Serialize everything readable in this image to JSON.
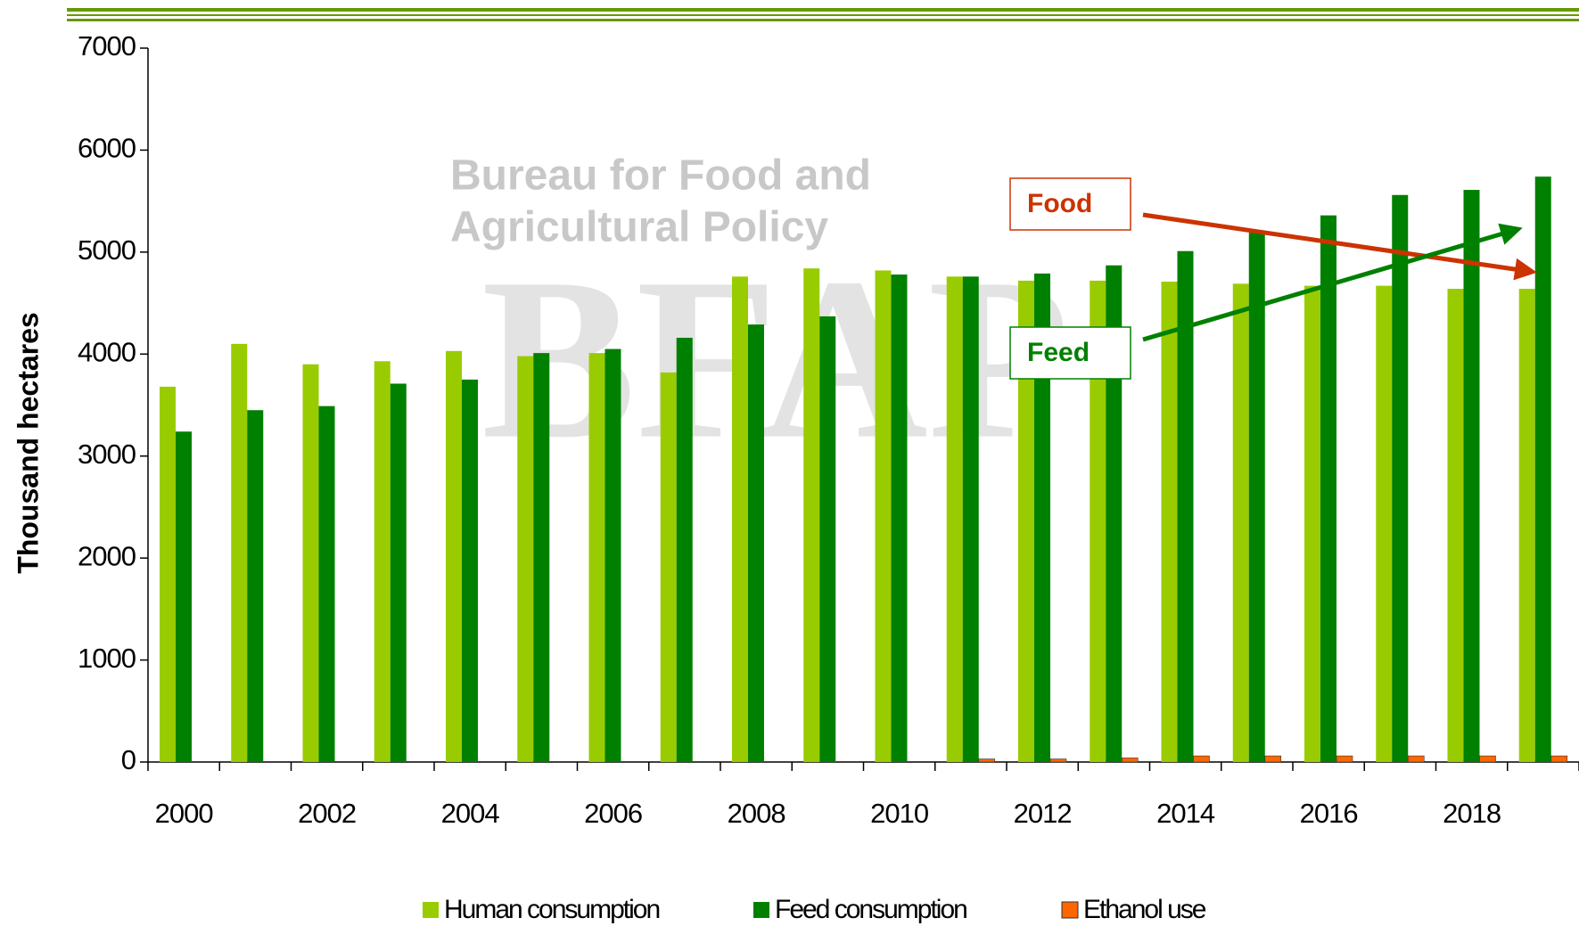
{
  "chart_data": {
    "type": "bar",
    "y_label": "Thousand hectares",
    "watermark": [
      "Bureau for Food and",
      "Agricultural Policy",
      "BFAP"
    ],
    "annotations": [
      {
        "text": "Food",
        "color": "#cc3300"
      },
      {
        "text": "Feed",
        "color": "#008000"
      }
    ],
    "categories": [
      "2000",
      null,
      "2002",
      null,
      "2004",
      null,
      "2006",
      null,
      "2008",
      null,
      "2010",
      null,
      "2012",
      null,
      "2014",
      null,
      "2016",
      null,
      "2018",
      null
    ],
    "series": [
      {
        "name": "Human consumption",
        "color": "#99cc00",
        "values": [
          3680,
          4100,
          3900,
          3930,
          4030,
          3980,
          4010,
          3820,
          4760,
          4840,
          4820,
          4760,
          4720,
          4720,
          4710,
          4690,
          4670,
          4670,
          4640,
          4640
        ]
      },
      {
        "name": "Feed consumption",
        "color": "#008000",
        "values": [
          3240,
          3450,
          3490,
          3710,
          3750,
          4010,
          4050,
          4160,
          4290,
          4370,
          4780,
          4760,
          4790,
          4870,
          5010,
          5190,
          5360,
          5560,
          5610,
          5740
        ]
      },
      {
        "name": "Ethanol use",
        "color": "#ff6600",
        "values": [
          0,
          0,
          0,
          0,
          0,
          0,
          0,
          0,
          0,
          0,
          0,
          30,
          30,
          40,
          60,
          60,
          60,
          60,
          60,
          60
        ]
      }
    ],
    "ylim": [
      0,
      7000
    ],
    "yticks": [
      0,
      1000,
      2000,
      3000,
      4000,
      5000,
      6000,
      7000
    ],
    "grid": false
  }
}
